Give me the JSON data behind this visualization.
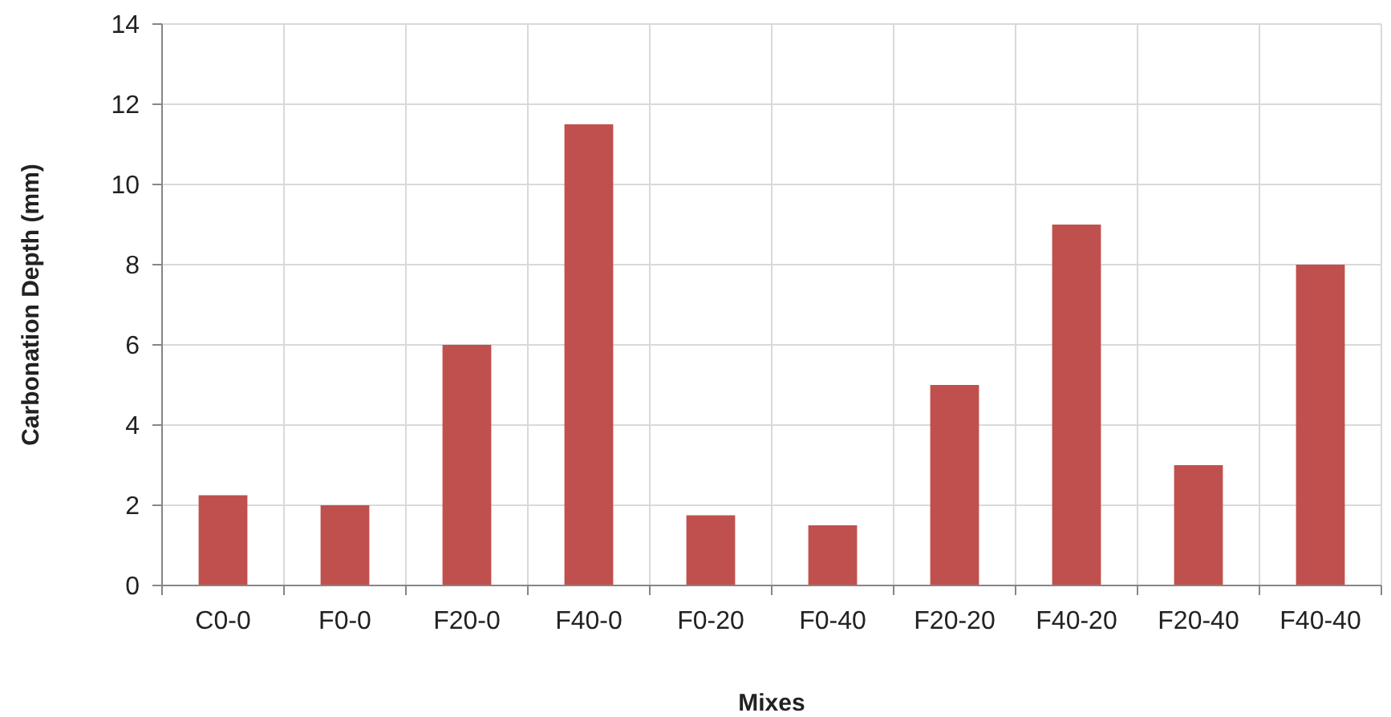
{
  "chart_data": {
    "type": "bar",
    "xlabel": "Mixes",
    "ylabel": "Carbonation Depth (mm)",
    "categories": [
      "C0-0",
      "F0-0",
      "F20-0",
      "F40-0",
      "F0-20",
      "F0-40",
      "F20-20",
      "F40-20",
      "F20-40",
      "F40-40"
    ],
    "values": [
      2.25,
      2,
      6,
      11.5,
      1.75,
      1.5,
      5,
      9,
      3,
      8
    ],
    "color": "#c0504d",
    "ylim": [
      0,
      14
    ],
    "yticks": [
      0,
      2,
      4,
      6,
      8,
      10,
      12,
      14
    ],
    "grid": true
  }
}
